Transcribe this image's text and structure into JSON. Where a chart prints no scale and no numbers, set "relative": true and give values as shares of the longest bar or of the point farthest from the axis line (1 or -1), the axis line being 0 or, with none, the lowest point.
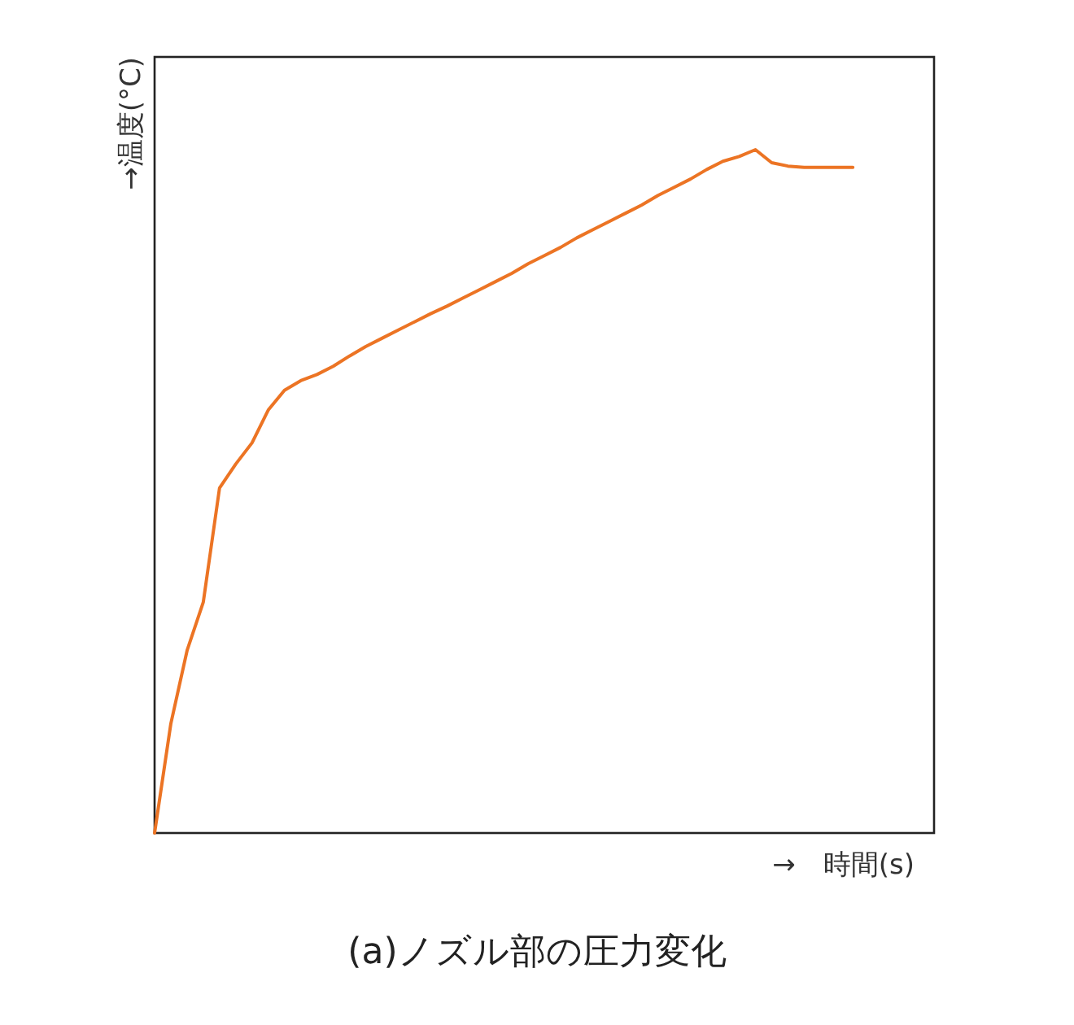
{
  "chart_data": {
    "type": "line",
    "relative": true,
    "title": "(a)ノズル部の圧力変化",
    "xlabel": "→　時間(s)",
    "ylabel": "→温度(°C)",
    "categories": [
      null,
      null,
      null,
      null,
      null,
      null,
      null,
      null,
      null,
      null,
      null,
      null,
      null,
      null,
      null,
      null,
      null,
      null,
      null,
      null,
      null,
      null,
      null,
      null,
      null,
      null,
      null,
      null,
      null,
      null,
      null,
      null,
      null,
      null,
      null,
      null,
      null,
      null,
      null,
      null,
      null,
      null,
      null,
      null,
      null,
      null,
      null,
      null,
      null
    ],
    "series": [
      {
        "color": "#ec7424",
        "values": [
          0,
          0.16,
          0.267,
          0.338,
          0.505,
          0.54,
          0.571,
          0.619,
          0.648,
          0.662,
          0.671,
          0.683,
          0.698,
          0.712,
          0.724,
          0.736,
          0.748,
          0.76,
          0.771,
          0.783,
          0.795,
          0.807,
          0.819,
          0.833,
          0.845,
          0.857,
          0.871,
          0.883,
          0.895,
          0.907,
          0.919,
          0.933,
          0.945,
          0.957,
          0.971,
          0.983,
          0.99,
          1,
          0.981,
          0.976,
          0.974,
          0.974,
          0.974,
          0.974,
          null,
          null,
          null,
          null,
          null
        ]
      }
    ]
  }
}
